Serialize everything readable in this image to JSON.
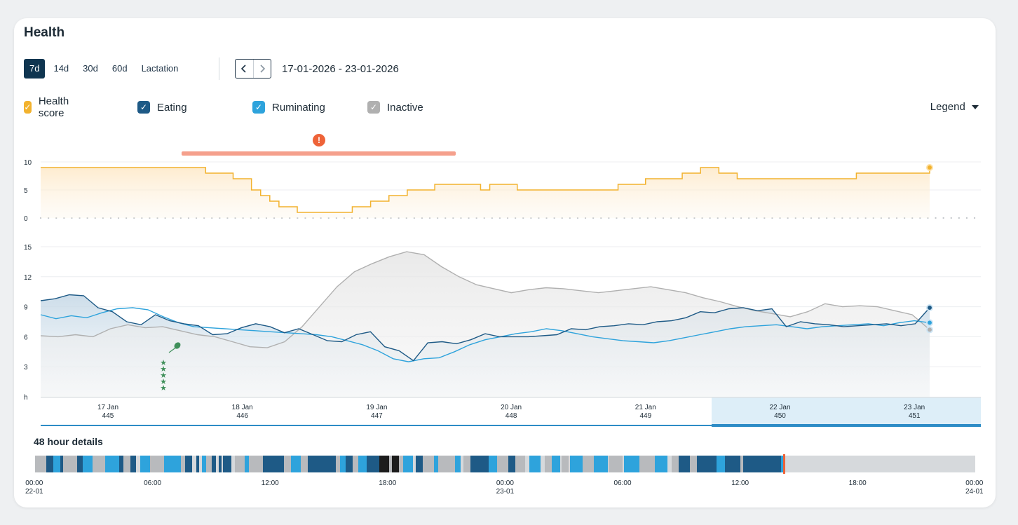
{
  "title": "Health",
  "periods": [
    "7d",
    "14d",
    "30d",
    "60d",
    "Lactation"
  ],
  "active_period": "7d",
  "date_range": "17-01-2026 - 23-01-2026",
  "legend_items": [
    {
      "label": "Health score",
      "color": "#f2b22e"
    },
    {
      "label": "Eating",
      "color": "#1e5a86"
    },
    {
      "label": "Ruminating",
      "color": "#2ea3dc"
    },
    {
      "label": "Inactive",
      "color": "#b0b0b0"
    }
  ],
  "legend_button": "Legend",
  "alert_icon": "!",
  "day_labels": [
    {
      "date": "17 Jan",
      "num": "445"
    },
    {
      "date": "18 Jan",
      "num": "446"
    },
    {
      "date": "19 Jan",
      "num": "447"
    },
    {
      "date": "20 Jan",
      "num": "448"
    },
    {
      "date": "21 Jan",
      "num": "449"
    },
    {
      "date": "22 Jan",
      "num": "450"
    },
    {
      "date": "23 Jan",
      "num": "451"
    }
  ],
  "details_title": "48 hour details",
  "timeline_ticks": [
    "00:00\n22-01",
    "06:00",
    "12:00",
    "18:00",
    "00:00\n23-01",
    "06:00",
    "12:00",
    "18:00",
    "00:00\n24-01"
  ],
  "chart_data": {
    "type": "line",
    "x_range": [
      "2026-01-17",
      "2026-01-23"
    ],
    "health_score": {
      "ylim": [
        0,
        10
      ],
      "ticks": [
        "10",
        "5",
        "0"
      ],
      "values": [
        9,
        9,
        9,
        9,
        9,
        9,
        9,
        9,
        9,
        9,
        9,
        9,
        9,
        9,
        9,
        9,
        9,
        9,
        8,
        8,
        8,
        7,
        7,
        5,
        4,
        3,
        2,
        2,
        1,
        1,
        1,
        1,
        1,
        1,
        2,
        2,
        3,
        3,
        4,
        4,
        5,
        5,
        5,
        6,
        6,
        6,
        6,
        6,
        5,
        6,
        6,
        6,
        5,
        5,
        5,
        5,
        5,
        5,
        5,
        5,
        5,
        5,
        5,
        6,
        6,
        6,
        7,
        7,
        7,
        7,
        8,
        8,
        9,
        9,
        8,
        8,
        7,
        7,
        7,
        7,
        7,
        7,
        7,
        7,
        7,
        7,
        7,
        7,
        7,
        8,
        8,
        8,
        8,
        8,
        8,
        8,
        8,
        9
      ]
    },
    "activity": {
      "ylim": [
        0,
        15
      ],
      "ticks": [
        "15",
        "12",
        "9",
        "6",
        "3",
        "h"
      ],
      "series": [
        {
          "name": "Eating",
          "values": [
            9.6,
            9.8,
            10.2,
            10.1,
            8.9,
            8.5,
            7.5,
            7.2,
            8.2,
            7.6,
            7.3,
            7.1,
            6.2,
            6.3,
            6.9,
            7.3,
            7.0,
            6.4,
            6.8,
            6.2,
            5.6,
            5.5,
            6.2,
            6.5,
            5.0,
            4.6,
            3.6,
            5.4,
            5.5,
            5.3,
            5.7,
            6.3,
            6.0,
            6.0,
            6.0,
            6.1,
            6.2,
            6.8,
            6.7,
            7.0,
            7.1,
            7.3,
            7.2,
            7.5,
            7.6,
            7.9,
            8.5,
            8.4,
            8.8,
            8.9,
            8.6,
            8.8,
            7.0,
            7.5,
            7.3,
            7.2,
            7.0,
            7.1,
            7.2,
            7.3,
            7.1,
            7.3,
            8.9
          ]
        },
        {
          "name": "Ruminating",
          "values": [
            8.2,
            7.8,
            8.1,
            7.9,
            8.4,
            8.8,
            8.9,
            8.7,
            8.0,
            7.4,
            7.0,
            6.9,
            6.8,
            6.7,
            6.6,
            6.5,
            6.4,
            6.3,
            6.2,
            6.0,
            5.6,
            5.2,
            4.6,
            3.8,
            3.5,
            3.8,
            3.9,
            4.5,
            5.2,
            5.7,
            6.0,
            6.3,
            6.5,
            6.8,
            6.6,
            6.3,
            6.0,
            5.8,
            5.6,
            5.5,
            5.4,
            5.6,
            5.9,
            6.2,
            6.5,
            6.8,
            7.0,
            7.1,
            7.2,
            7.0,
            6.8,
            7.0,
            7.1,
            7.2,
            7.3,
            7.1,
            7.4,
            7.6,
            7.4
          ]
        },
        {
          "name": "Inactive",
          "values": [
            6.1,
            6.0,
            6.2,
            6.0,
            6.8,
            7.2,
            6.9,
            7.0,
            6.6,
            6.2,
            6.0,
            5.5,
            5.0,
            4.9,
            5.5,
            7.0,
            9.0,
            11.0,
            12.5,
            13.3,
            14.0,
            14.5,
            14.2,
            13.0,
            12.0,
            11.2,
            10.8,
            10.4,
            10.7,
            10.9,
            10.8,
            10.6,
            10.4,
            10.6,
            10.8,
            11.0,
            10.7,
            10.4,
            9.9,
            9.5,
            9.0,
            8.6,
            8.3,
            8.0,
            8.5,
            9.3,
            9.0,
            9.1,
            9.0,
            8.6,
            8.2,
            6.7
          ]
        }
      ]
    }
  }
}
